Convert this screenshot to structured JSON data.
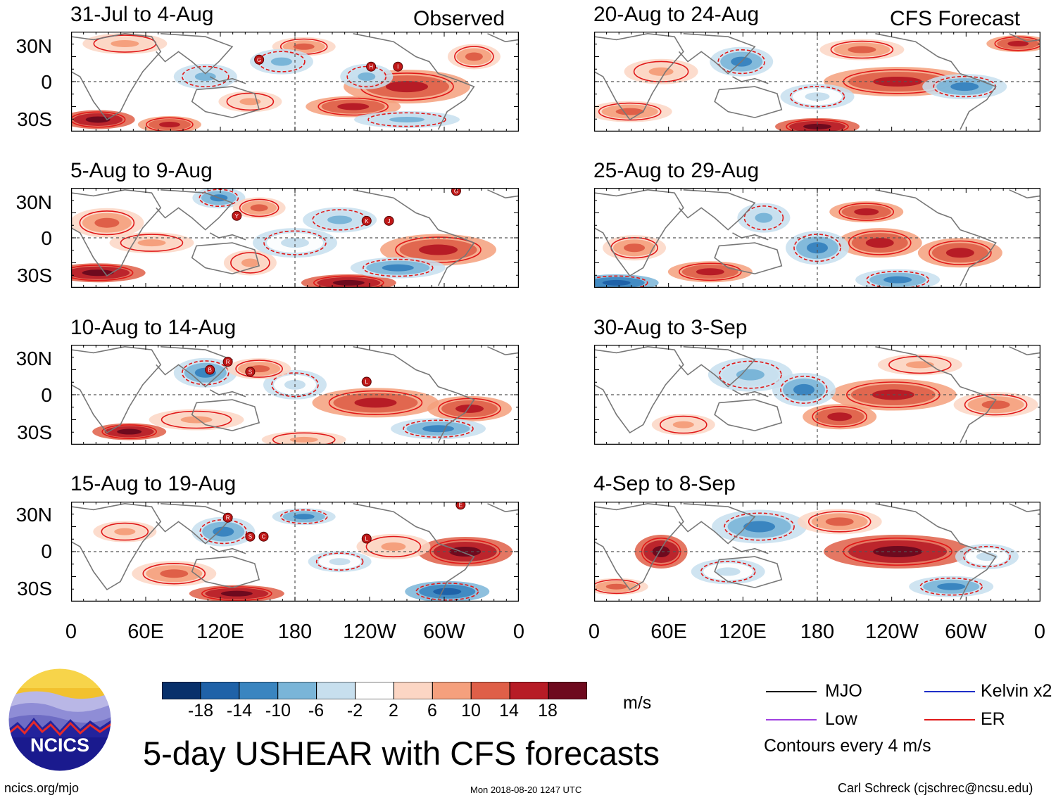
{
  "panels_left": {
    "header_right": "Observed",
    "titles": [
      "31-Jul to 4-Aug",
      "5-Aug to 9-Aug",
      "10-Aug to 14-Aug",
      "15-Aug to 19-Aug"
    ]
  },
  "panels_right": {
    "header_right": "CFS Forecast",
    "titles": [
      "20-Aug to 24-Aug",
      "25-Aug to 29-Aug",
      "30-Aug to 3-Sep",
      "4-Sep to 8-Sep"
    ]
  },
  "axes": {
    "lat_labels": [
      "30N",
      "0",
      "30S"
    ],
    "lon_labels": [
      "0",
      "60E",
      "120E",
      "180",
      "120W",
      "60W",
      "0"
    ]
  },
  "storm_markers": {
    "p1": [
      "G",
      "H",
      "I"
    ],
    "p2": [
      "Y",
      "K",
      "J",
      "G"
    ],
    "p3": [
      "B",
      "R",
      "S",
      "L"
    ],
    "p4": [
      "R",
      "S",
      "C",
      "L",
      "E"
    ]
  },
  "colorbar": {
    "colors": [
      "#08306b",
      "#1f62a8",
      "#3a85c0",
      "#7ab5d8",
      "#c7dfee",
      "#ffffff",
      "#fcd6c4",
      "#f5a07d",
      "#df5f48",
      "#b71c26",
      "#6e0a1e"
    ],
    "labels": [
      "-18",
      "-14",
      "-10",
      "-6",
      "-2",
      "2",
      "6",
      "10",
      "14",
      "18"
    ],
    "units": "m/s"
  },
  "legend": {
    "items": [
      {
        "label": "MJO",
        "color": "#000000"
      },
      {
        "label": "Kelvin x2",
        "color": "#1e2fc8"
      },
      {
        "label": "Low",
        "color": "#a040e0"
      },
      {
        "label": "ER",
        "color": "#e01818"
      }
    ],
    "note": "Contours every 4 m/s"
  },
  "logo_text": "NCICS",
  "main_title": "5-day USHEAR with CFS forecasts",
  "footer": {
    "url": "ncics.org/mjo",
    "timestamp": "Mon 2018-08-20 1247 UTC",
    "author": "Carl Schreck (cjschrec@ncsu.edu)"
  }
}
